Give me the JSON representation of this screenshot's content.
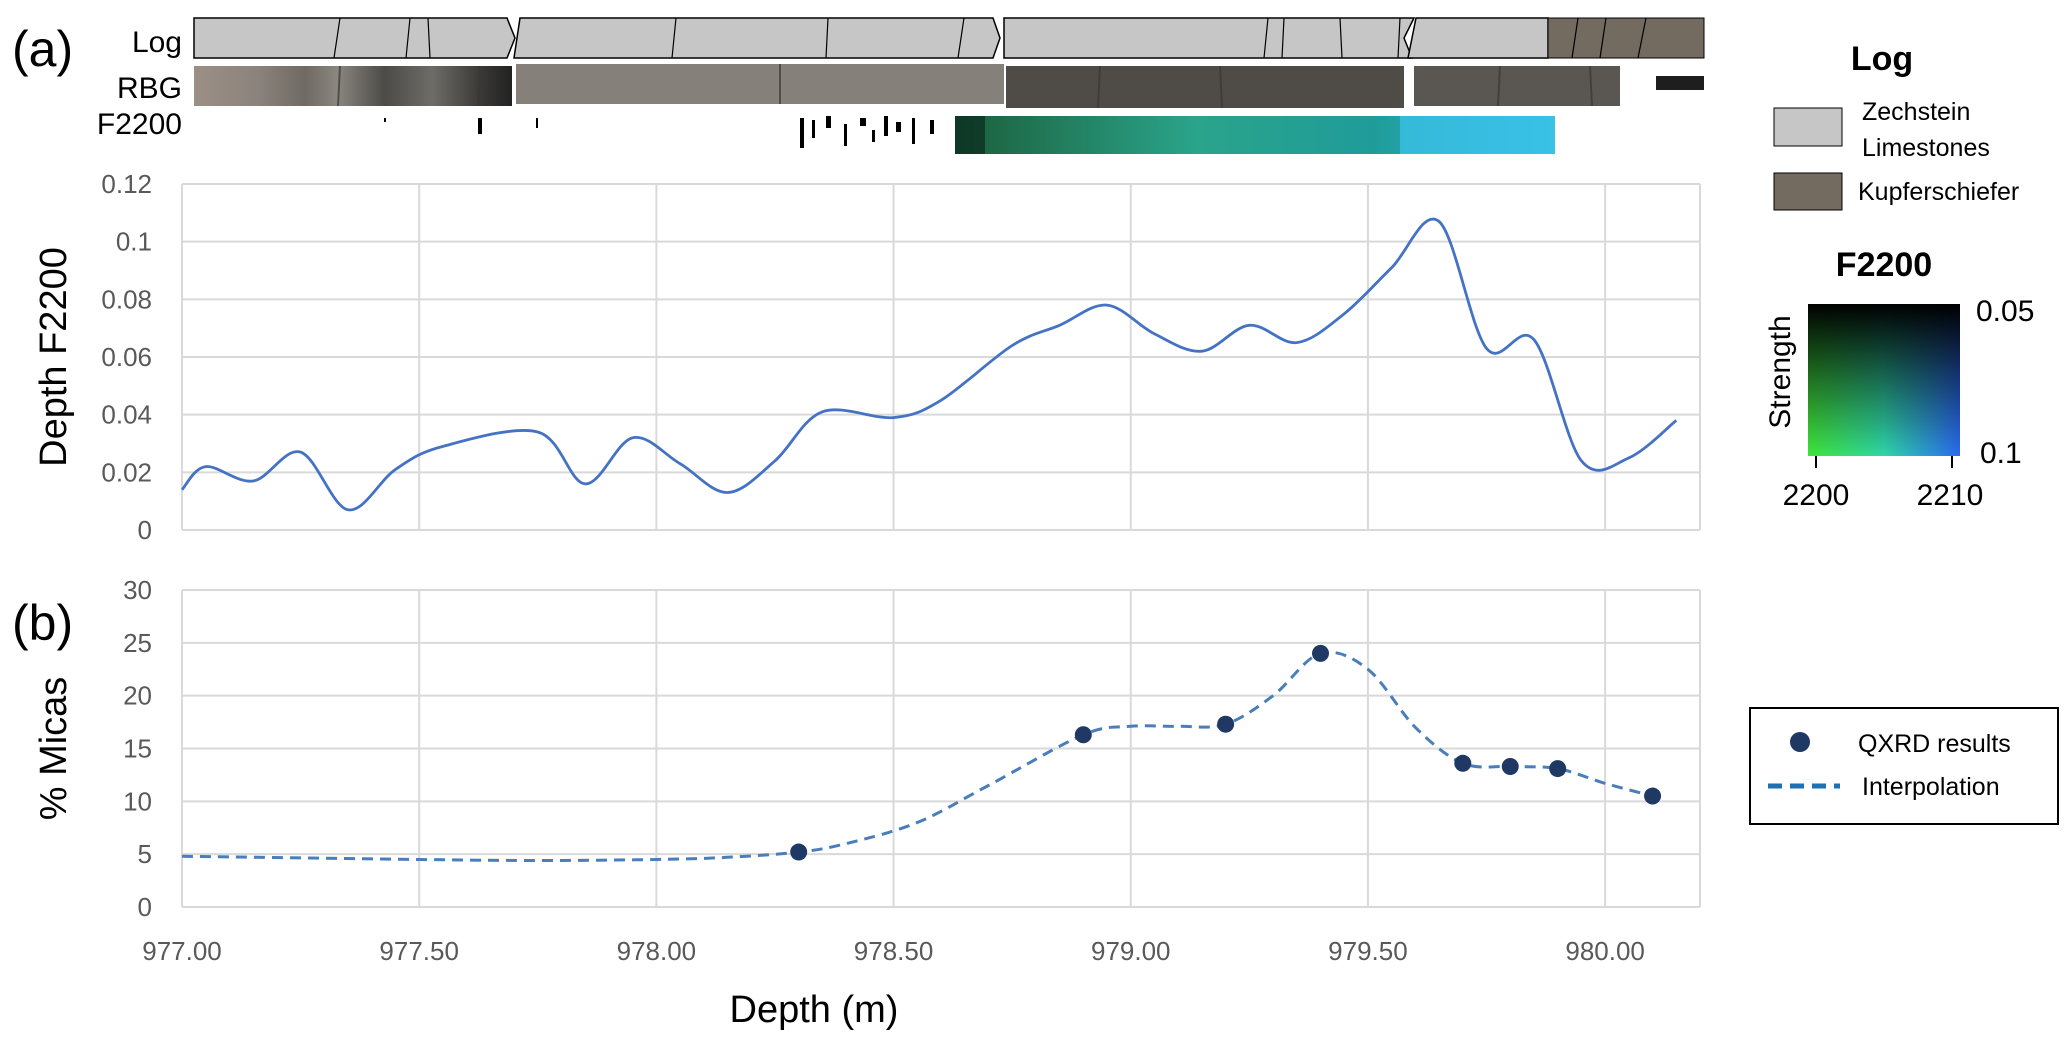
{
  "panels": {
    "a": "(a)",
    "b": "(b)"
  },
  "strips": {
    "log": "Log",
    "rgb": "RBG",
    "f2200": "F2200"
  },
  "colors": {
    "line_a": "#4472c4",
    "line_b": "#4a7ebb",
    "points": "#1f3864",
    "grid": "#d9d9d9",
    "zechstein": "#c6c6c6",
    "kupferschiefer": "#736b5f"
  },
  "legend_log": {
    "title": "Log",
    "items": [
      {
        "label_line1": "Zechstein",
        "label_line2": "Limestones"
      },
      {
        "label_line1": "Kupferschiefer",
        "label_line2": ""
      }
    ]
  },
  "legend_f2200": {
    "title": "F2200",
    "ylabel": "Strength",
    "y_top": "0.05",
    "y_bottom": "0.1",
    "x_left": "2200",
    "x_right": "2210"
  },
  "legend_b": {
    "points_label": "QXRD results",
    "line_label": "Interpolation"
  },
  "chart_data": [
    {
      "type": "line",
      "panel": "(a)",
      "xlabel": "",
      "ylabel": "Depth F2200",
      "xlim": [
        977.0,
        980.2
      ],
      "ylim": [
        0,
        0.12
      ],
      "yticks": [
        "0",
        "0.02",
        "0.04",
        "0.06",
        "0.08",
        "0.1",
        "0.12"
      ],
      "grid": true,
      "x": [
        977.0,
        977.05,
        977.15,
        977.25,
        977.35,
        977.45,
        977.55,
        977.75,
        977.85,
        977.95,
        978.05,
        978.15,
        978.25,
        978.35,
        978.5,
        978.6,
        978.75,
        978.85,
        978.95,
        979.05,
        979.15,
        979.25,
        979.35,
        979.45,
        979.55,
        979.65,
        979.75,
        979.85,
        979.95,
        980.05,
        980.15
      ],
      "y": [
        0.014,
        0.022,
        0.017,
        0.027,
        0.007,
        0.021,
        0.029,
        0.034,
        0.016,
        0.032,
        0.023,
        0.013,
        0.024,
        0.041,
        0.039,
        0.045,
        0.064,
        0.071,
        0.078,
        0.068,
        0.062,
        0.071,
        0.065,
        0.075,
        0.091,
        0.107,
        0.063,
        0.066,
        0.024,
        0.025,
        0.038
      ]
    },
    {
      "type": "scatter",
      "panel": "(b)",
      "xlabel": "Depth (m)",
      "ylabel": "% Micas",
      "xlim": [
        977.0,
        980.2
      ],
      "ylim": [
        0,
        30
      ],
      "xticks": [
        "977.00",
        "977.50",
        "978.00",
        "978.50",
        "979.00",
        "979.50",
        "980.00"
      ],
      "yticks": [
        "0",
        "5",
        "10",
        "15",
        "20",
        "25",
        "30"
      ],
      "grid": true,
      "legend_position": "right",
      "series": [
        {
          "name": "QXRD results",
          "x": [
            978.3,
            978.9,
            979.2,
            979.4,
            979.7,
            979.8,
            979.9,
            980.1
          ],
          "y": [
            5.2,
            16.3,
            17.3,
            24.0,
            13.6,
            13.3,
            13.1,
            10.5
          ]
        },
        {
          "name": "Interpolation",
          "x": [
            977.0,
            977.5,
            977.75,
            978.0,
            978.15,
            978.3,
            978.4,
            978.55,
            978.7,
            978.9,
            979.0,
            979.1,
            979.2,
            979.3,
            979.4,
            979.5,
            979.6,
            979.7,
            979.8,
            979.9,
            980.0,
            980.1
          ],
          "y": [
            4.8,
            4.5,
            4.4,
            4.5,
            4.7,
            5.2,
            6.0,
            8.0,
            11.5,
            16.3,
            17.1,
            17.1,
            17.3,
            20.0,
            24.0,
            22.5,
            17.0,
            13.6,
            13.3,
            13.1,
            11.7,
            10.5
          ]
        }
      ]
    }
  ]
}
